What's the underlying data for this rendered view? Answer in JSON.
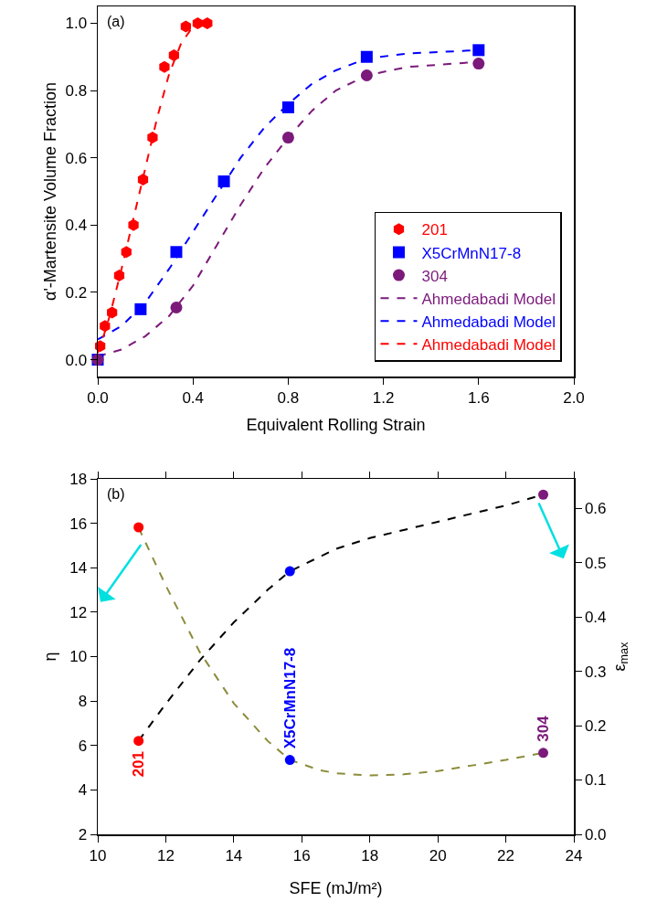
{
  "chart_data": [
    {
      "type": "scatter",
      "xlabel": "Equivalent Rolling Strain",
      "ylabel": "α'-Martensite Volume Fraction",
      "annotations": [
        "(a)"
      ],
      "xlim": [
        0,
        2.0
      ],
      "xticks": [
        {
          "value": 0,
          "label": "0.0"
        },
        {
          "value": 0.4,
          "label": "0.4"
        },
        {
          "value": 0.8,
          "label": "0.8"
        },
        {
          "value": 1.2,
          "label": "1.2"
        },
        {
          "value": 1.6,
          "label": "1.6"
        },
        {
          "value": 2,
          "label": "2.0"
        }
      ],
      "ylim": [
        -0.05,
        1.05
      ],
      "yticks": [
        {
          "value": 0,
          "label": "0.0"
        },
        {
          "value": 0.2,
          "label": "0.2"
        },
        {
          "value": 0.4,
          "label": "0.4"
        },
        {
          "value": 0.6,
          "label": "0.6"
        },
        {
          "value": 0.8,
          "label": "0.8"
        },
        {
          "value": 1,
          "label": "1.0"
        }
      ],
      "grid": false,
      "legend": "bottom right",
      "series": [
        {
          "name": "201",
          "type": "scatter",
          "color": "#ff0000",
          "x": [
            0.01,
            0.03,
            0.06,
            0.09,
            0.12,
            0.15,
            0.19,
            0.23,
            0.28,
            0.32,
            0.37,
            0.42,
            0.46
          ],
          "values": [
            0.04,
            0.1,
            0.14,
            0.25,
            0.32,
            0.4,
            0.535,
            0.66,
            0.87,
            0.905,
            0.99,
            1.0,
            1.0
          ]
        },
        {
          "name": "X5CrMnN17-8",
          "type": "scatter",
          "marker": "square",
          "color": "#0000ff",
          "x": [
            0,
            0.18,
            0.33,
            0.53,
            0.8,
            1.13,
            1.6
          ],
          "values": [
            0,
            0.15,
            0.32,
            0.53,
            0.75,
            0.9,
            0.92
          ]
        },
        {
          "name": "304",
          "type": "scatter",
          "marker": "circle",
          "color": "#7b1a7b",
          "x": [
            0,
            0.33,
            0.8,
            1.13,
            1.6
          ],
          "values": [
            0,
            0.155,
            0.66,
            0.845,
            0.88
          ]
        },
        {
          "name": "Ahmedabadi Model",
          "type": "line",
          "line_style": "dashed",
          "color": "#7b1a7b",
          "x": [
            0,
            0.1,
            0.2,
            0.3,
            0.4,
            0.5,
            0.6,
            0.7,
            0.8,
            0.9,
            1.0,
            1.13,
            1.3,
            1.6
          ],
          "values": [
            0.01,
            0.03,
            0.07,
            0.13,
            0.22,
            0.34,
            0.46,
            0.57,
            0.66,
            0.74,
            0.8,
            0.845,
            0.87,
            0.885
          ]
        },
        {
          "name": "Ahmedabadi Model",
          "type": "line",
          "line_style": "dashed",
          "color": "#0000ff",
          "x": [
            0,
            0.1,
            0.2,
            0.3,
            0.4,
            0.5,
            0.6,
            0.7,
            0.8,
            0.9,
            1.0,
            1.13,
            1.3,
            1.6
          ],
          "values": [
            0.06,
            0.1,
            0.17,
            0.27,
            0.38,
            0.49,
            0.6,
            0.69,
            0.76,
            0.82,
            0.86,
            0.895,
            0.91,
            0.92
          ]
        },
        {
          "name": "Ahmedabadi Model",
          "type": "line",
          "line_style": "dashed",
          "color": "#ff0000",
          "x": [
            0,
            0.02,
            0.05,
            0.1,
            0.15,
            0.2,
            0.25,
            0.3,
            0.35,
            0.4,
            0.45
          ],
          "values": [
            0.02,
            0.06,
            0.13,
            0.27,
            0.42,
            0.57,
            0.72,
            0.85,
            0.94,
            0.99,
            1.0
          ]
        }
      ]
    },
    {
      "type": "scatter",
      "xlabel": "SFE (mJ/m²)",
      "ylabel": "η",
      "y2label": "ε$_{max}$",
      "annotations": [
        "(b)",
        "201",
        "X5CrMnN17-8",
        "304"
      ],
      "xlim": [
        10,
        24
      ],
      "xticks": [
        10,
        12,
        14,
        16,
        18,
        20,
        22,
        24
      ],
      "ylim": [
        2,
        18
      ],
      "yticks": [
        2,
        4,
        6,
        8,
        10,
        12,
        14,
        16,
        18
      ],
      "y2lim": [
        0,
        0.654
      ],
      "y2ticks": [
        {
          "value": 0,
          "label": "0.0"
        },
        {
          "value": 0.1,
          "label": "0.1"
        },
        {
          "value": 0.2,
          "label": "0.2"
        },
        {
          "value": 0.3,
          "label": "0.3"
        },
        {
          "value": 0.4,
          "label": "0.4"
        },
        {
          "value": 0.5,
          "label": "0.5"
        },
        {
          "value": 0.6,
          "label": "0.6"
        }
      ],
      "grid": false,
      "legend": false,
      "series": [
        {
          "type": "line",
          "line_style": "dashed",
          "color": "#8c8c3c",
          "x": [
            11.2,
            12,
            13,
            14,
            15,
            15.65,
            16.5,
            17,
            18,
            19,
            20,
            21,
            22,
            23.1
          ],
          "values": [
            15.8,
            13.2,
            10.2,
            7.9,
            6.2,
            5.35,
            4.9,
            4.75,
            4.65,
            4.7,
            4.85,
            5.1,
            5.35,
            5.67
          ]
        },
        {
          "type": "line",
          "axis": "y2",
          "line_style": "dashed",
          "color": "#000000",
          "x": [
            11.2,
            12,
            13,
            14,
            15,
            15.65,
            17,
            18,
            20,
            22,
            23.1
          ],
          "values": [
            0.172,
            0.24,
            0.32,
            0.39,
            0.45,
            0.484,
            0.525,
            0.545,
            0.575,
            0.605,
            0.625
          ]
        },
        {
          "type": "scatter",
          "marker": "circle",
          "colors": [
            "#ff0000",
            "#0000ff",
            "#7b1a7b"
          ],
          "x": [
            11.2,
            15.65,
            23.1
          ],
          "values": [
            15.82,
            5.35,
            5.67
          ]
        },
        {
          "type": "scatter",
          "axis": "y2",
          "marker": "circle",
          "colors": [
            "#ff0000",
            "#0000ff",
            "#7b1a7b"
          ],
          "x": [
            11.2,
            15.65,
            23.1
          ],
          "values": [
            0.172,
            0.484,
            0.625
          ]
        }
      ]
    }
  ]
}
